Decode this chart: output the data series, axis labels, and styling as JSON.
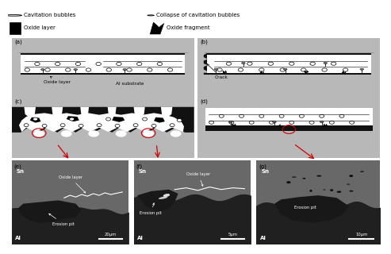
{
  "figure_bg": "#ffffff",
  "substrate_color": "#b8b8b8",
  "oxide_color": "#111111",
  "white": "#ffffff",
  "black": "#000000",
  "red_arrow": "#cc0000",
  "sem_dark": "#181818",
  "sem_sn": "#686868",
  "sem_al": "#202020"
}
